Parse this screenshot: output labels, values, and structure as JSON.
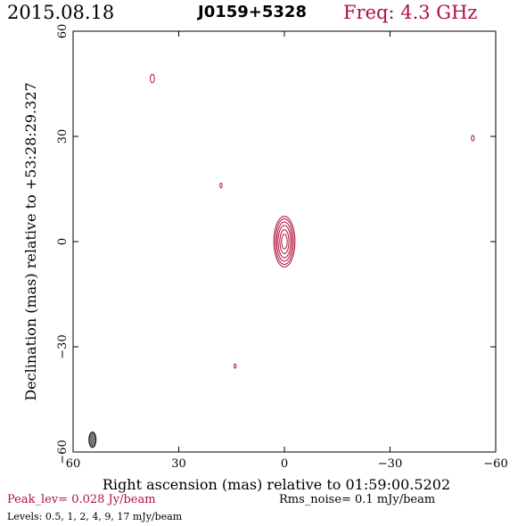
{
  "header": {
    "date": "2015.08.18",
    "source": "J0159+5328",
    "frequency": "Freq: 4.3 GHz"
  },
  "footer": {
    "peak": "Peak_lev=  0.028 Jy/beam",
    "rms": "Rms_noise=   0.1 mJy/beam",
    "levels": "Levels: 0.5,    1,    2,    4,    9,   17 mJy/beam"
  },
  "chart_data": {
    "type": "contour",
    "xlabel": "Right ascension (mas) relative to 01:59:00.5202",
    "ylabel": "Declination (mas) relative to +53:28:29.327",
    "xlim": [
      60,
      -60
    ],
    "ylim": [
      -60,
      60
    ],
    "xticks": [
      60,
      30,
      0,
      -30,
      -60
    ],
    "yticks": [
      -60,
      -30,
      0,
      30,
      60
    ],
    "tick_labels_x": [
      "60",
      "30",
      "0",
      "−30",
      "−60"
    ],
    "tick_labels_y": [
      "−60",
      "−30",
      "0",
      "30",
      "60"
    ],
    "contour_levels_mJy": [
      0.5,
      1,
      2,
      4,
      9,
      17
    ],
    "contour_color": "#b0103c",
    "core": {
      "x": 0,
      "y": 0,
      "ellipses": [
        {
          "rx": 3.0,
          "ry": 7.2
        },
        {
          "rx": 2.6,
          "ry": 6.5
        },
        {
          "rx": 2.2,
          "ry": 5.6
        },
        {
          "rx": 1.8,
          "ry": 4.6
        },
        {
          "rx": 1.3,
          "ry": 3.4
        },
        {
          "rx": 0.8,
          "ry": 2.1
        }
      ]
    },
    "noise_blobs": [
      {
        "x": 37.5,
        "y": 46.5,
        "rx": 0.6,
        "ry": 1.2
      },
      {
        "x": 18,
        "y": 16,
        "rx": 0.3,
        "ry": 0.7
      },
      {
        "x": -53.5,
        "y": 29.5,
        "rx": 0.4,
        "ry": 0.8
      },
      {
        "x": 14,
        "y": -35.5,
        "rx": 0.3,
        "ry": 0.6
      }
    ],
    "beam": {
      "x": 54.5,
      "y": -56.5,
      "rx": 1.0,
      "ry": 2.2,
      "color": "#777777"
    }
  }
}
